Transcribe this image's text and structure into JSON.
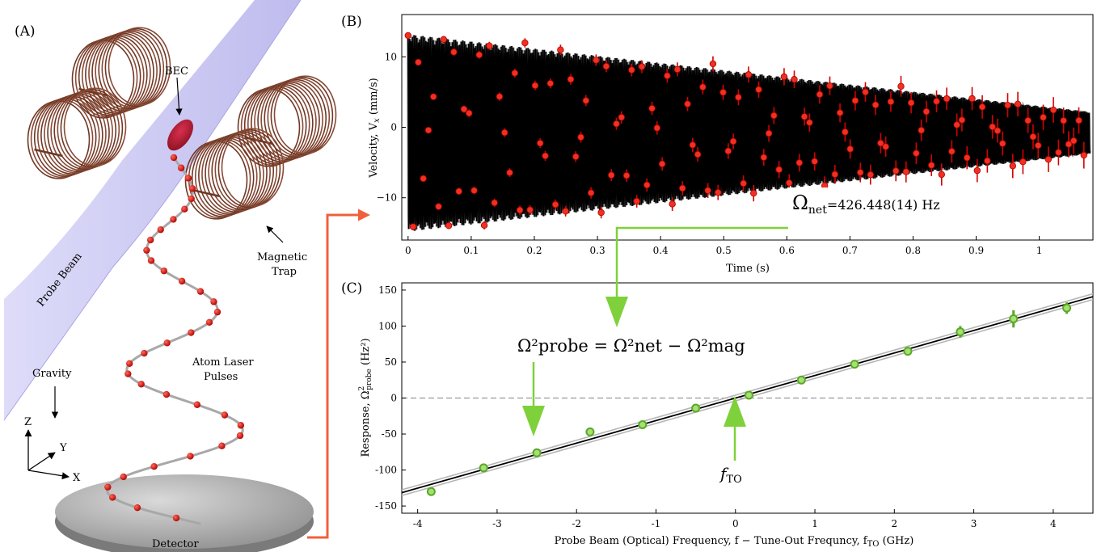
{
  "panel_a": {
    "label": "(A)",
    "bec": "BEC",
    "probe_beam": "Probe Beam",
    "magnetic_trap_1": "Magnetic",
    "magnetic_trap_2": "Trap",
    "gravity": "Gravity",
    "atom_1": "Atom Laser",
    "atom_2": "Pulses",
    "detector": "Detector",
    "axis_z": "Z",
    "axis_y": "Y",
    "axis_x": "X"
  },
  "chart_data": [
    {
      "id": "B",
      "panel_label": "(B)",
      "type": "scatter",
      "xlabel": "Time (s)",
      "ylabel": "Velocity, V",
      "ylabel_sub": "x",
      "ylabel_unit": " (mm/s)",
      "xlim": [
        -0.01,
        1.085
      ],
      "ylim": [
        -16,
        16
      ],
      "xticks": [
        0,
        0.1,
        0.2,
        0.3,
        0.4,
        0.5,
        0.6,
        0.7,
        0.8,
        0.9,
        1
      ],
      "xtick_labels": [
        "0",
        "0.1",
        "0.2",
        "0.3",
        "0.4",
        "0.5",
        "0.6",
        "0.7",
        "0.8",
        "0.9",
        "1"
      ],
      "yticks": [
        -10,
        0,
        10
      ],
      "ytick_labels": [
        "−10",
        "0",
        "10"
      ],
      "fit": {
        "freq_hz": 426.448,
        "amp_start": 14.0,
        "amp_end": 3.0,
        "offset": -0.8
      },
      "sample_interval_s": 0.00805,
      "annotation_main": "Ω",
      "annotation_sub": "net",
      "annotation_value": "=426.448(14) Hz"
    },
    {
      "id": "C",
      "panel_label": "(C)",
      "type": "scatter",
      "xlabel": "Probe Beam (Optical) Frequency, f − Tune-Out Frequncy, f",
      "xlabel_sub": "TO",
      "xlabel_unit": "  (GHz)",
      "ylabel": "Response, Ω",
      "ylabel_sup": "2",
      "ylabel_sub": "probe",
      "ylabel_unit": " (Hz²)",
      "xlim": [
        -4.2,
        4.5
      ],
      "ylim": [
        -160,
        160
      ],
      "xticks": [
        -4,
        -3,
        -2,
        -1,
        0,
        1,
        2,
        3,
        4
      ],
      "xtick_labels": [
        "-4",
        "-3",
        "-2",
        "-1",
        "0",
        "1",
        "2",
        "3",
        "4"
      ],
      "yticks": [
        -150,
        -100,
        -50,
        0,
        50,
        100,
        150
      ],
      "ytick_labels": [
        "-150",
        "-100",
        "-50",
        "0",
        "50",
        "100",
        "150"
      ],
      "fit": {
        "slope": 31.3,
        "intercept": 0
      },
      "points": {
        "x": [
          -3.83,
          -3.17,
          -2.5,
          -1.83,
          -1.17,
          -0.5,
          0.17,
          0.83,
          1.5,
          2.17,
          2.83,
          3.5,
          4.17
        ],
        "y": [
          -130,
          -97,
          -76,
          -47,
          -37,
          -14,
          4,
          25,
          47,
          65,
          92,
          110,
          125
        ],
        "err": [
          3,
          4,
          3,
          3,
          3,
          3,
          4,
          3,
          3,
          6,
          8,
          12,
          8
        ]
      },
      "equation": "Ω²probe = Ω²net − Ω²mag",
      "tune_out_label": "f",
      "tune_out_sub": "TO"
    }
  ]
}
